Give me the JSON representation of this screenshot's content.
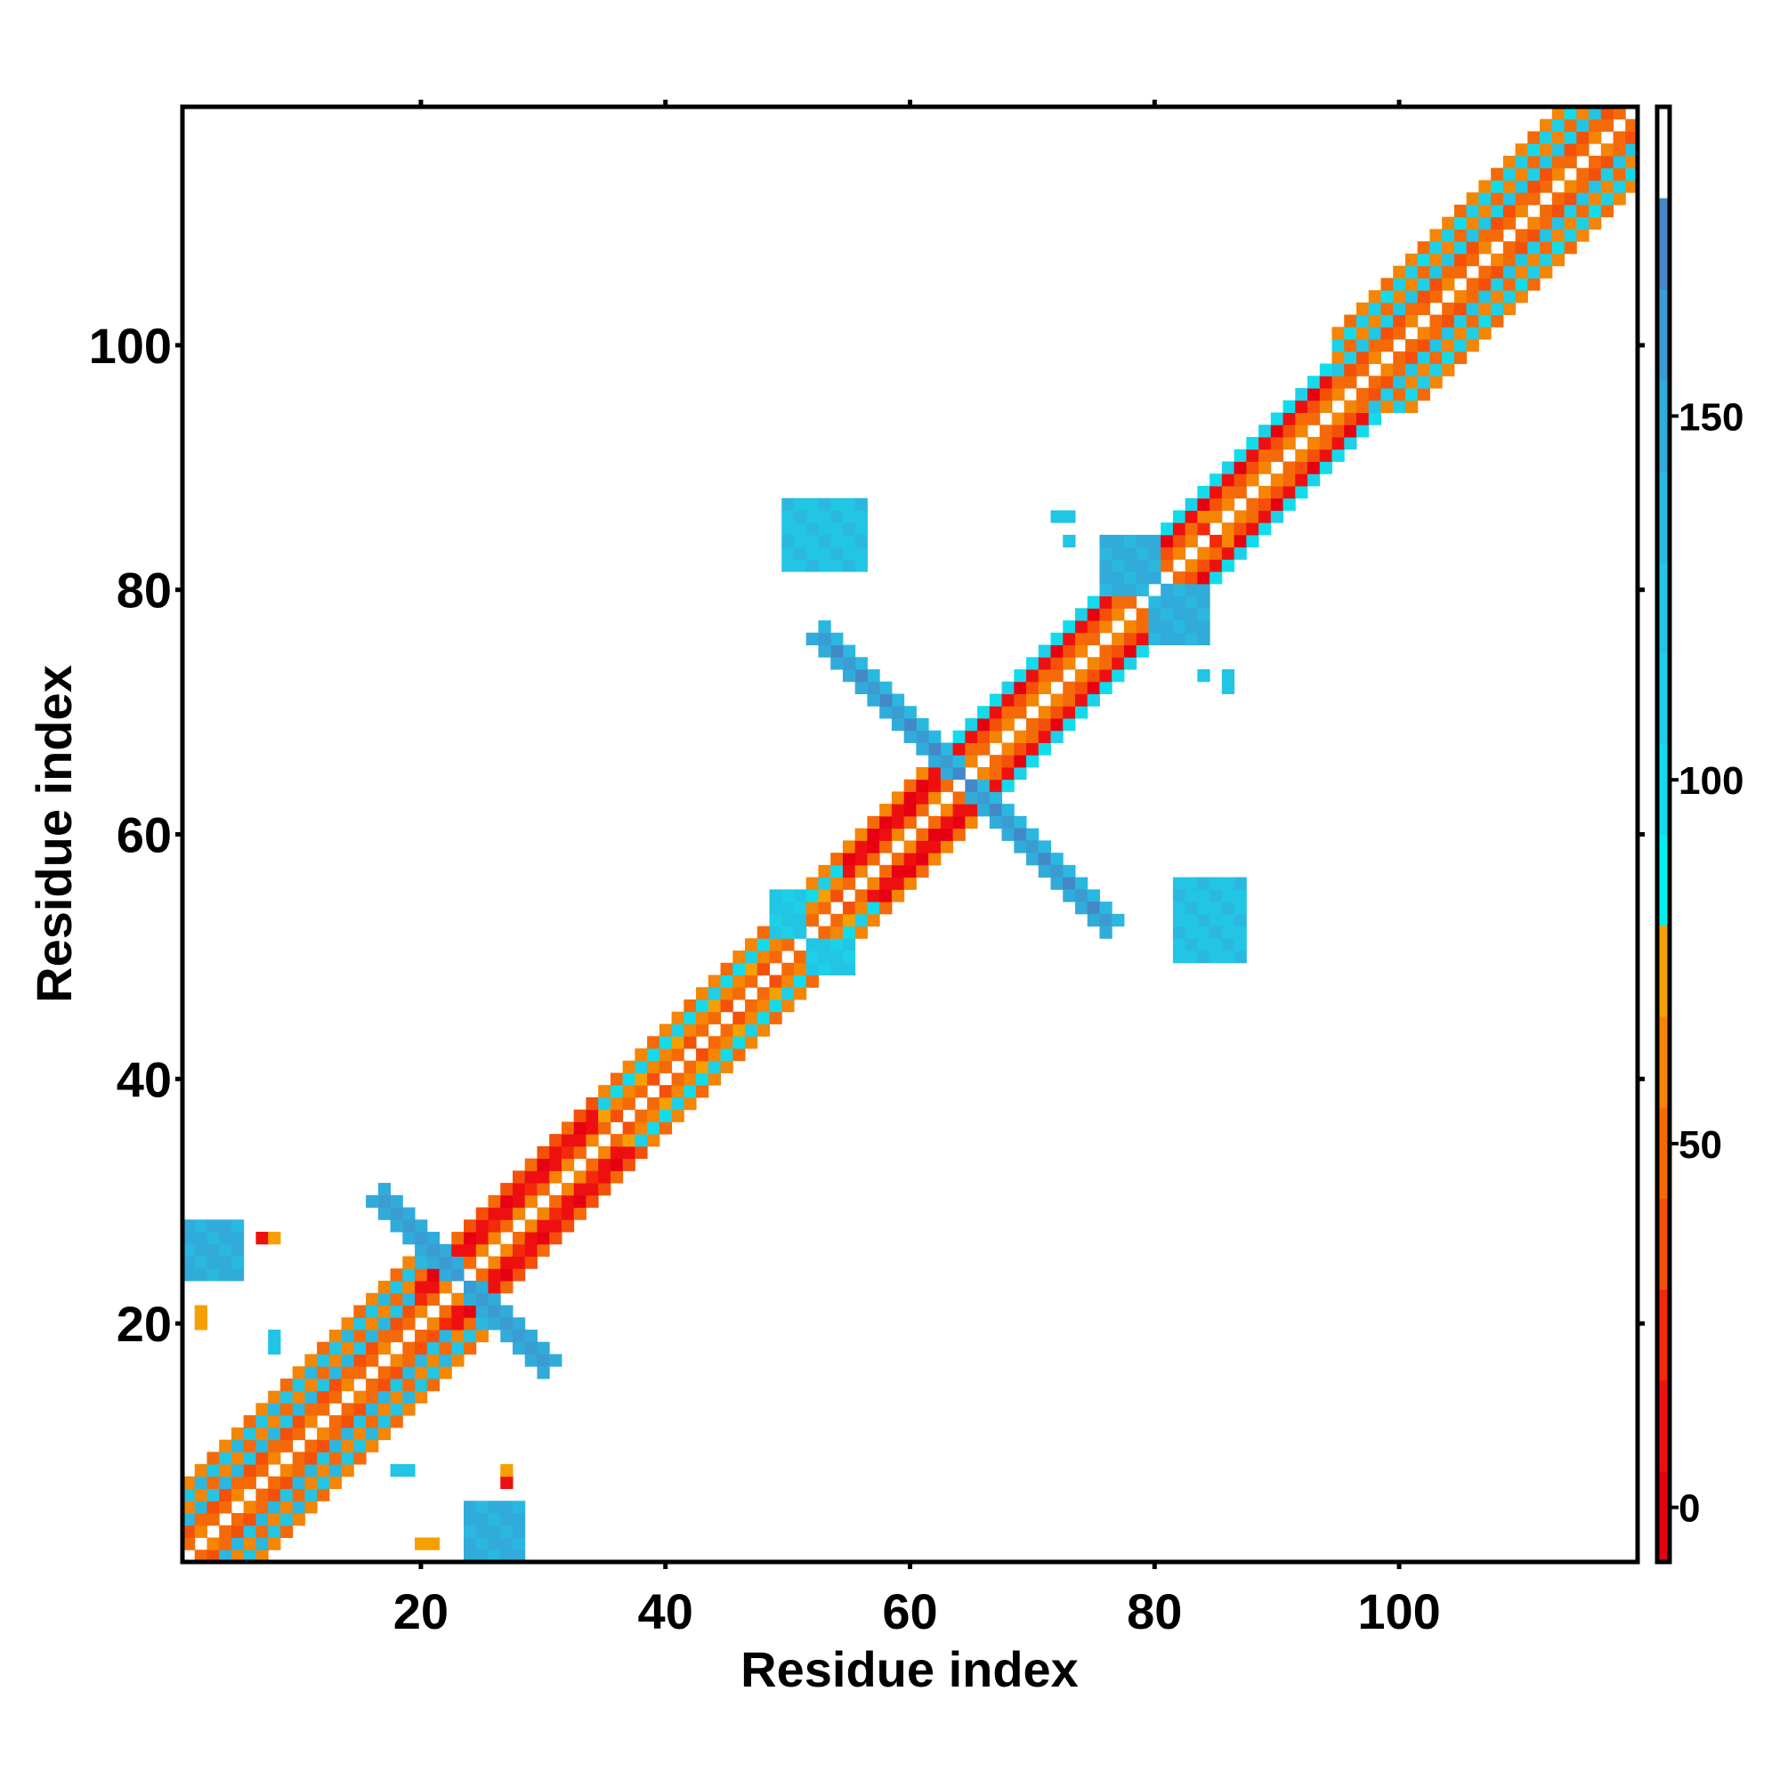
{
  "chart_data": {
    "type": "heatmap",
    "description_kind": "symmetric residue contact map",
    "n_residues": 119,
    "xlabel": "Residue index",
    "ylabel": "Residue index",
    "xlim": [
      0.5,
      119.5
    ],
    "ylim": [
      0.5,
      119.5
    ],
    "x_ticks": [
      "20",
      "40",
      "60",
      "80",
      "100"
    ],
    "x_tick_values": [
      20,
      40,
      60,
      80,
      100
    ],
    "y_ticks": [
      "20",
      "40",
      "60",
      "80",
      "100"
    ],
    "y_tick_values": [
      20,
      40,
      60,
      80,
      100
    ],
    "colorbar": {
      "range": [
        -7.5,
        192.5
      ],
      "ticks": [
        "0",
        "50",
        "100",
        "150"
      ],
      "tick_values": [
        0,
        50,
        100,
        150
      ],
      "bin_edges": [
        -7.5,
        5,
        17.5,
        30,
        42.5,
        55,
        67.5,
        80,
        92.5,
        105,
        117.5,
        130,
        142.5,
        155,
        167.5,
        180,
        192.5
      ],
      "bin_colors": [
        "#e60012",
        "#ee1010",
        "#f22a0a",
        "#f4500a",
        "#f56a08",
        "#f58505",
        "#f5a000",
        "#00f0f0",
        "#12dceb",
        "#1dd0e8",
        "#22c5e4",
        "#2ab8e0",
        "#31abda",
        "#3a9cd3",
        "#4488c8",
        "#ffffff"
      ]
    },
    "diagonal_band": [
      {
        "from": 1,
        "to": 20,
        "offset_values": [
          50,
          40,
          130,
          60,
          125,
          55
        ]
      },
      {
        "from": 20,
        "to": 35,
        "offset_values": [
          60,
          15,
          5,
          40
        ]
      },
      {
        "from": 35,
        "to": 55,
        "offset_values": [
          45,
          65,
          100,
          55
        ]
      },
      {
        "from": 55,
        "to": 64,
        "offset_values": [
          50,
          10,
          3,
          60
        ]
      },
      {
        "from": 64,
        "to": 95,
        "offset_values": [
          55,
          40,
          10,
          100
        ]
      },
      {
        "from": 95,
        "to": 119,
        "offset_values": [
          50,
          40,
          120,
          60,
          110,
          55
        ]
      }
    ],
    "antiparallel_crosses": [
      {
        "center": 23,
        "arm_length": 7,
        "core_value": 165,
        "edge_value": 145
      },
      {
        "center": 64,
        "arm_length": 12,
        "core_value": 170,
        "edge_value": 140
      }
    ],
    "clusters": [
      {
        "i": [
          1,
          5
        ],
        "j": [
          24,
          28
        ],
        "value": 135
      },
      {
        "i": [
          50,
          56
        ],
        "j": [
          82,
          87
        ],
        "value": 120
      },
      {
        "i": [
          76,
          80
        ],
        "j": [
          80,
          84
        ],
        "value": 135
      },
      {
        "i": [
          52,
          55
        ],
        "j": [
          49,
          51
        ],
        "value": 110
      }
    ],
    "points": [
      [
        7,
        27,
        10
      ],
      [
        8,
        27,
        70
      ],
      [
        2,
        21,
        75
      ],
      [
        8,
        19,
        120
      ],
      [
        18,
        8,
        120
      ],
      [
        27,
        7,
        10
      ],
      [
        20,
        2,
        75
      ],
      [
        72,
        86,
        125
      ],
      [
        73,
        86,
        125
      ],
      [
        73,
        84,
        125
      ],
      [
        84,
        85,
        20
      ],
      [
        85,
        85,
        40
      ],
      [
        84,
        86,
        60
      ],
      [
        86,
        72,
        125
      ]
    ]
  }
}
